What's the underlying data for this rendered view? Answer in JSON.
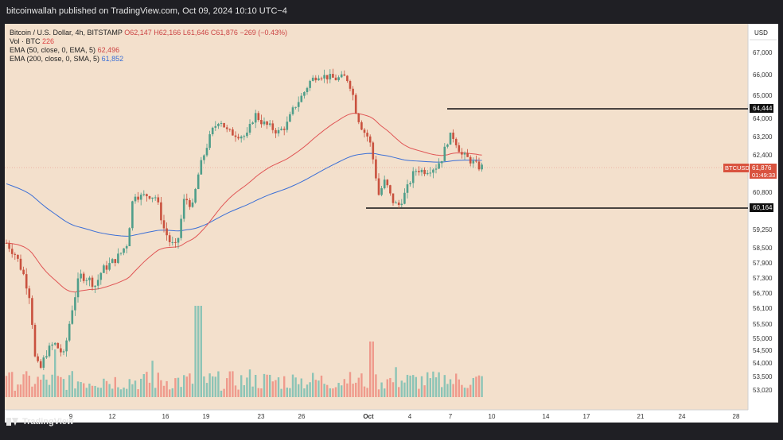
{
  "header": {
    "published_text": "bitcoinwallah published on TradingView.com, Oct 09, 2024 10:10 UTC−4"
  },
  "legend": {
    "title": "Bitcoin / U.S. Dollar, 4h, BITSTAMP",
    "ohlc_o": "O62,147",
    "ohlc_h": "H62,166",
    "ohlc_l": "L61,646",
    "ohlc_c": "C61,876",
    "change": "−269 (−0.43%)",
    "vol_label": "Vol · BTC",
    "vol_value": "226",
    "ema50_label": "EMA (50, close, 0, EMA, 5)",
    "ema50_value": "62,496",
    "ema200_label": "EMA (200, close, 0, SMA, 5)",
    "ema200_value": "61,852"
  },
  "footer": {
    "logo_text": "TradingView"
  },
  "chart_data": {
    "type": "candlestick",
    "currency_label": "USD",
    "symbol_badge": "BTCUSD",
    "price_badge": "61,876",
    "countdown_badge": "01:49:33",
    "y_ticks": [
      "67,000",
      "66,000",
      "65,000",
      "64,000",
      "63,200",
      "62,400",
      "60,800",
      "59,250",
      "58,500",
      "57,900",
      "57,300",
      "56,700",
      "56,100",
      "55,500",
      "55,000",
      "54,500",
      "54,000",
      "53,500",
      "53,020"
    ],
    "x_ticks": [
      "9",
      "12",
      "16",
      "19",
      "23",
      "26",
      "Oct",
      "4",
      "7",
      "10",
      "14",
      "17",
      "21",
      "24",
      "28"
    ],
    "levels": [
      {
        "label": "64,444",
        "value": 64444
      },
      {
        "label": "60,164",
        "value": 60164
      }
    ],
    "colors": {
      "up": "#4f9e8a",
      "down": "#c9513e",
      "ema50": "#e05555",
      "ema200": "#3b6fd6",
      "vol_up": "#8cc4b6",
      "vol_down": "#ef9a8c"
    },
    "grid": false
  }
}
